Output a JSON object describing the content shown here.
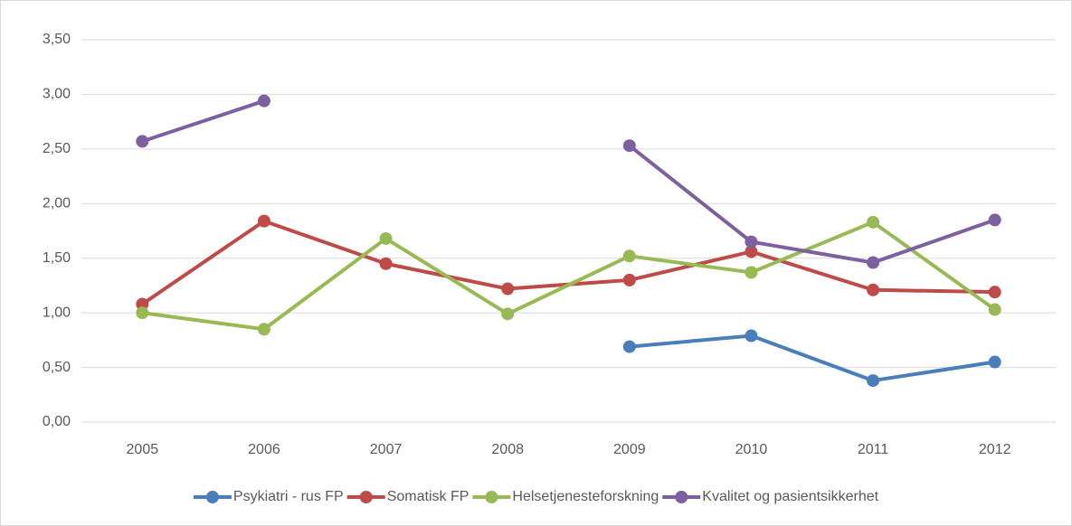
{
  "chart_data": {
    "type": "line",
    "categories": [
      "2005",
      "2006",
      "2007",
      "2008",
      "2009",
      "2010",
      "2011",
      "2012"
    ],
    "series": [
      {
        "name": "Psykiatri - rus FP",
        "color": "#4a7ebb",
        "values": [
          null,
          null,
          null,
          null,
          0.69,
          0.79,
          0.38,
          0.55
        ]
      },
      {
        "name": "Somatisk FP",
        "color": "#be4b48",
        "values": [
          1.08,
          1.84,
          1.45,
          1.22,
          1.3,
          1.56,
          1.21,
          1.19
        ]
      },
      {
        "name": "Helsetjenesteforskning",
        "color": "#98b954",
        "values": [
          1.0,
          0.85,
          1.68,
          0.99,
          1.52,
          1.37,
          1.83,
          1.03
        ]
      },
      {
        "name": "Kvalitet og pasientsikkerhet",
        "color": "#7d60a0",
        "values": [
          2.57,
          2.94,
          null,
          null,
          2.53,
          1.65,
          1.46,
          1.85
        ]
      }
    ],
    "ylim": [
      0,
      3.5
    ],
    "yticks": [
      {
        "value": 0,
        "label": "0,00"
      },
      {
        "value": 0.5,
        "label": "0,50"
      },
      {
        "value": 1,
        "label": "1,00"
      },
      {
        "value": 1.5,
        "label": "1,50"
      },
      {
        "value": 2,
        "label": "2,00"
      },
      {
        "value": 2.5,
        "label": "2,50"
      },
      {
        "value": 3,
        "label": "3,00"
      },
      {
        "value": 3.5,
        "label": "3,50"
      }
    ],
    "grid": true,
    "legend": "bottom"
  }
}
